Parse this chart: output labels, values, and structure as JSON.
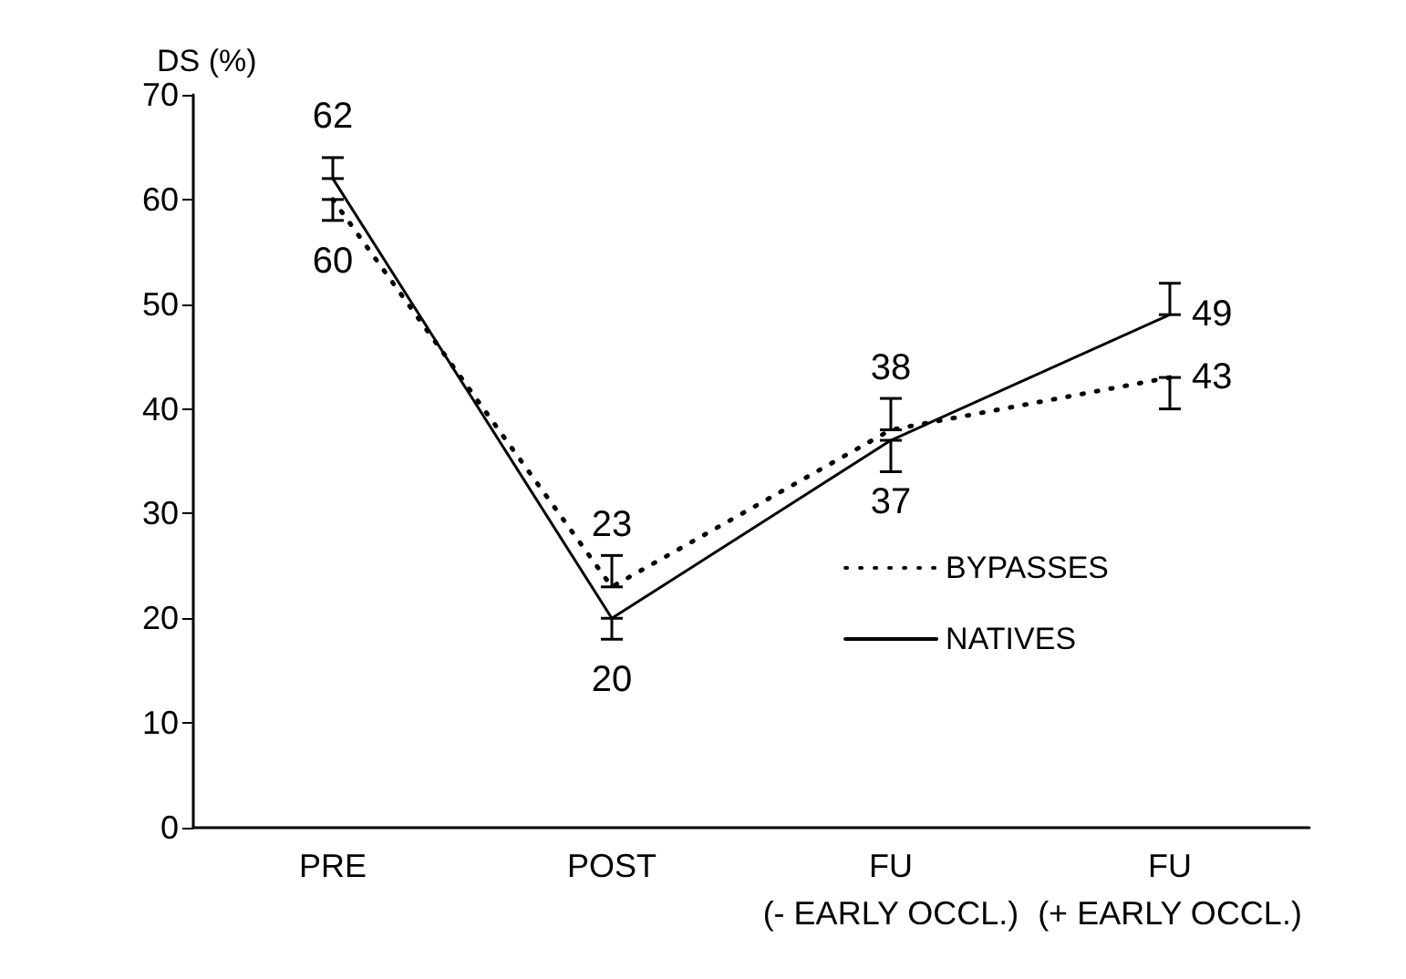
{
  "chart_data": {
    "type": "line",
    "ylabel": "DS (%)",
    "categories": [
      "PRE",
      "POST",
      "FU\n(- EARLY OCCL.)",
      "FU\n(+ EARLY OCCL.)"
    ],
    "series": [
      {
        "name": "BYPASSES",
        "color": "#000000",
        "line_style": "dotted",
        "values": [
          60,
          23,
          38,
          43
        ],
        "errors": [
          [
            58,
            60
          ],
          [
            23,
            26
          ],
          [
            38,
            41
          ],
          [
            40,
            43
          ]
        ]
      },
      {
        "name": "NATIVES",
        "color": "#000000",
        "line_style": "solid",
        "values": [
          62,
          20,
          37,
          49
        ],
        "errors": [
          [
            62,
            64
          ],
          [
            18,
            20
          ],
          [
            34,
            37
          ],
          [
            49,
            52
          ]
        ]
      }
    ],
    "ylim": [
      0,
      70
    ],
    "yticks": [
      0,
      10,
      20,
      30,
      40,
      50,
      60,
      70
    ],
    "grid": false,
    "legend": "right",
    "marker": "none",
    "data_labels": true
  }
}
